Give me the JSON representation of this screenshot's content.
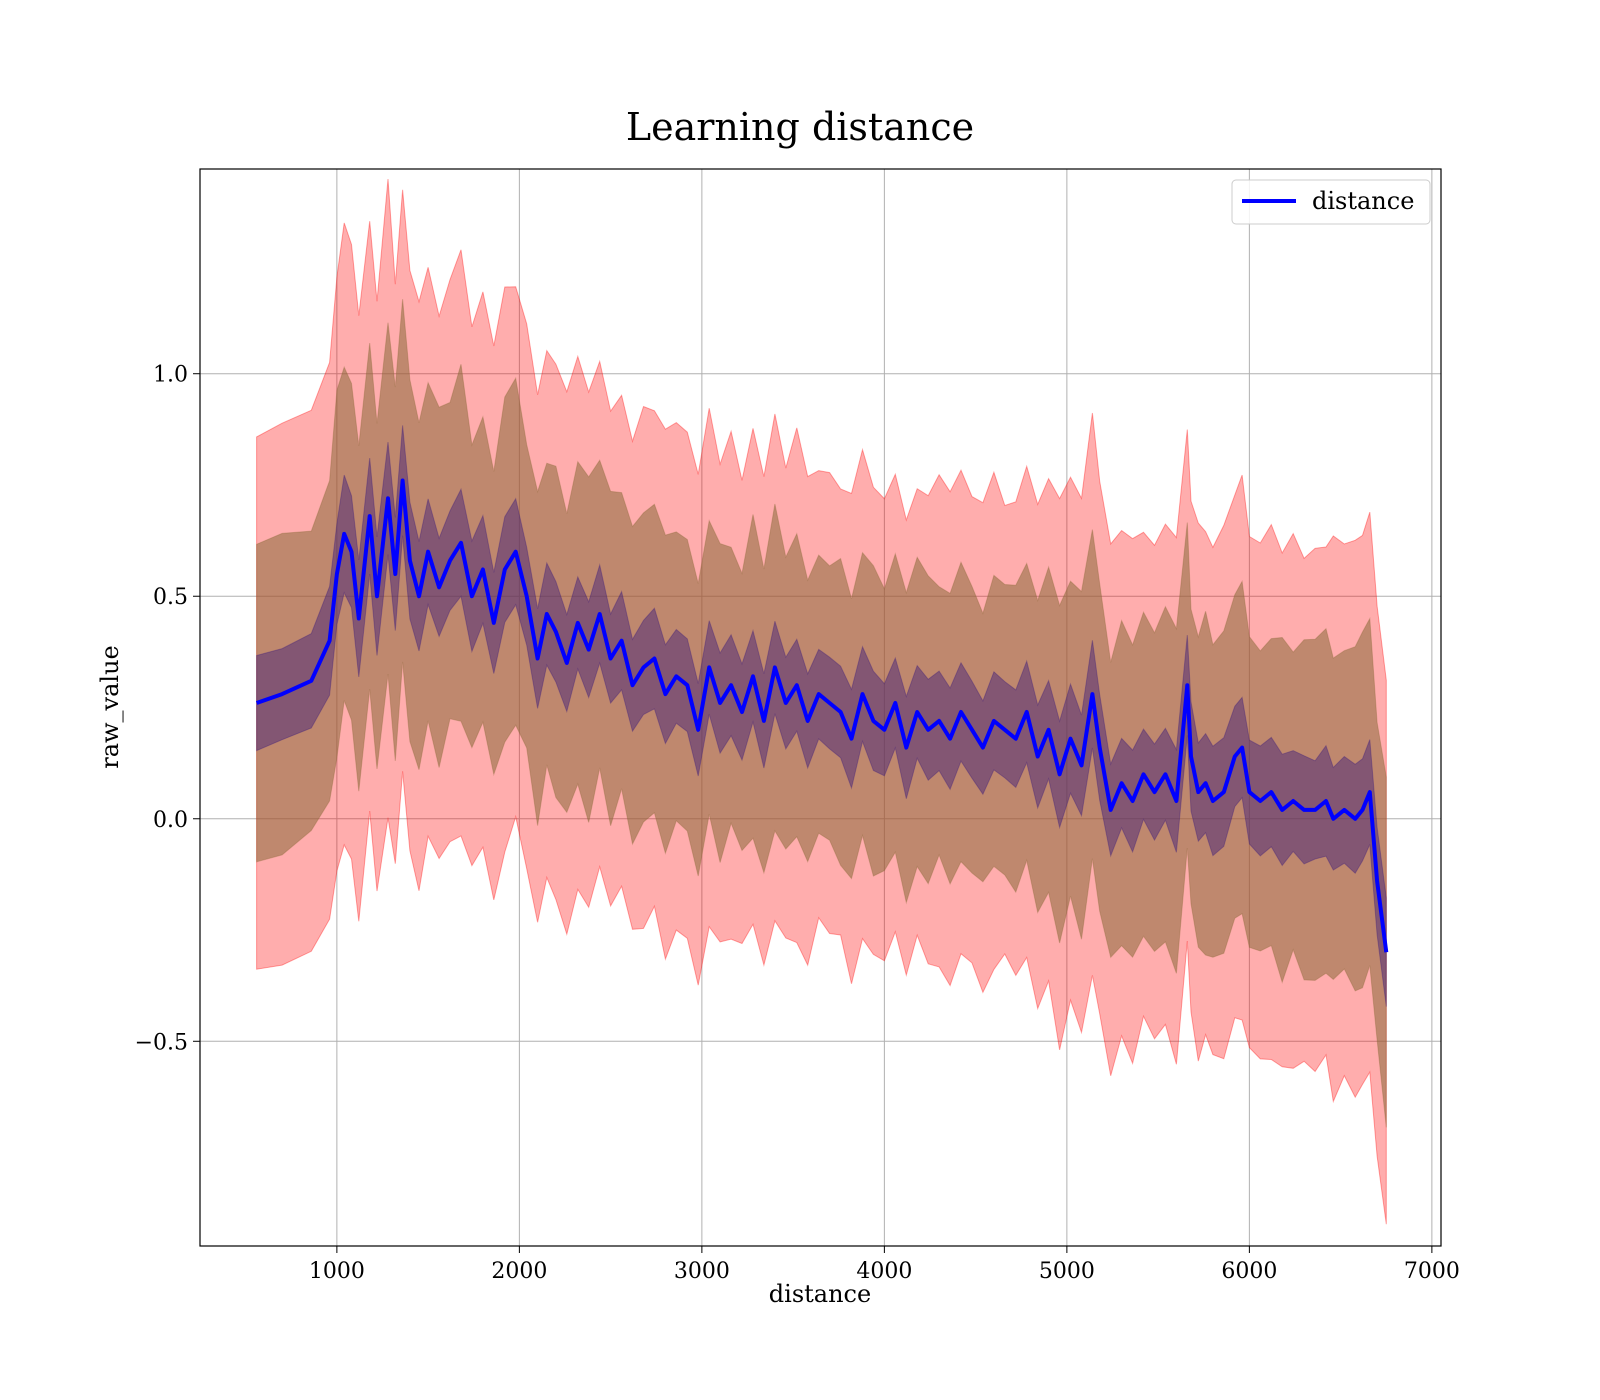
{
  "chart_data": {
    "type": "line",
    "title": "Learning distance",
    "xlabel": "distance",
    "ylabel": "raw_value",
    "xlim": [
      250,
      7050
    ],
    "ylim": [
      -0.96,
      1.46
    ],
    "xticks": [
      1000,
      2000,
      3000,
      4000,
      5000,
      6000,
      7000
    ],
    "xtick_labels": [
      "1000",
      "2000",
      "3000",
      "4000",
      "5000",
      "6000",
      "7000"
    ],
    "yticks": [
      -0.5,
      0.0,
      0.5,
      1.0
    ],
    "ytick_labels": [
      "−0.5",
      "0.0",
      "0.5",
      "1.0"
    ],
    "grid": true,
    "legend": {
      "position": "top-right",
      "entries": [
        "distance"
      ]
    },
    "series": [
      {
        "name": "distance",
        "color": "#0000ff",
        "x": [
          560,
          700,
          860,
          960,
          1000,
          1040,
          1080,
          1120,
          1180,
          1220,
          1280,
          1320,
          1360,
          1400,
          1450,
          1500,
          1560,
          1620,
          1680,
          1740,
          1800,
          1860,
          1920,
          1980,
          2040,
          2100,
          2150,
          2200,
          2260,
          2320,
          2380,
          2440,
          2500,
          2560,
          2620,
          2680,
          2740,
          2800,
          2860,
          2920,
          2980,
          3040,
          3100,
          3160,
          3220,
          3280,
          3340,
          3400,
          3460,
          3520,
          3580,
          3640,
          3700,
          3760,
          3820,
          3880,
          3940,
          4000,
          4060,
          4120,
          4180,
          4240,
          4300,
          4360,
          4420,
          4480,
          4540,
          4600,
          4660,
          4720,
          4780,
          4840,
          4900,
          4960,
          5020,
          5080,
          5140,
          5180,
          5240,
          5300,
          5360,
          5420,
          5480,
          5540,
          5600,
          5660,
          5680,
          5720,
          5760,
          5800,
          5860,
          5920,
          5960,
          6000,
          6060,
          6120,
          6180,
          6240,
          6300,
          6360,
          6420,
          6460,
          6520,
          6580,
          6620,
          6660,
          6700,
          6750
        ],
        "y": [
          0.26,
          0.28,
          0.31,
          0.4,
          0.55,
          0.64,
          0.6,
          0.45,
          0.68,
          0.5,
          0.72,
          0.55,
          0.76,
          0.58,
          0.5,
          0.6,
          0.52,
          0.58,
          0.62,
          0.5,
          0.56,
          0.44,
          0.56,
          0.6,
          0.5,
          0.36,
          0.46,
          0.42,
          0.35,
          0.44,
          0.38,
          0.46,
          0.36,
          0.4,
          0.3,
          0.34,
          0.36,
          0.28,
          0.32,
          0.3,
          0.2,
          0.34,
          0.26,
          0.3,
          0.24,
          0.32,
          0.22,
          0.34,
          0.26,
          0.3,
          0.22,
          0.28,
          0.26,
          0.24,
          0.18,
          0.28,
          0.22,
          0.2,
          0.26,
          0.16,
          0.24,
          0.2,
          0.22,
          0.18,
          0.24,
          0.2,
          0.16,
          0.22,
          0.2,
          0.18,
          0.24,
          0.14,
          0.2,
          0.1,
          0.18,
          0.12,
          0.28,
          0.16,
          0.02,
          0.08,
          0.04,
          0.1,
          0.06,
          0.1,
          0.04,
          0.3,
          0.14,
          0.06,
          0.08,
          0.04,
          0.06,
          0.14,
          0.16,
          0.06,
          0.04,
          0.06,
          0.02,
          0.04,
          0.02,
          0.02,
          0.04,
          0.0,
          0.02,
          0.0,
          0.02,
          0.06,
          -0.14,
          -0.3
        ]
      }
    ],
    "bands": [
      {
        "name": "",
        "color": "#ff0000",
        "opacity": 0.32,
        "halfwidth": [
          0.56,
          0.58,
          0.6,
          0.62,
          0.64,
          0.66,
          0.66,
          0.68,
          0.66,
          0.66,
          0.66,
          0.64,
          0.64,
          0.64,
          0.62,
          0.62,
          0.6,
          0.6,
          0.6,
          0.58,
          0.58,
          0.58,
          0.58,
          0.58,
          0.56,
          0.56,
          0.56,
          0.56,
          0.56,
          0.56,
          0.56,
          0.56,
          0.54,
          0.54,
          0.54,
          0.54,
          0.54,
          0.54,
          0.54,
          0.54,
          0.54,
          0.54,
          0.52,
          0.52,
          0.52,
          0.52,
          0.52,
          0.52,
          0.52,
          0.52,
          0.5,
          0.5,
          0.5,
          0.5,
          0.5,
          0.5,
          0.5,
          0.5,
          0.5,
          0.5,
          0.5,
          0.5,
          0.5,
          0.5,
          0.5,
          0.5,
          0.5,
          0.5,
          0.5,
          0.52,
          0.54,
          0.56,
          0.56,
          0.56,
          0.56,
          0.58,
          0.6,
          0.56,
          0.54,
          0.54,
          0.54,
          0.54,
          0.54,
          0.54,
          0.56,
          0.56,
          0.56,
          0.56,
          0.56,
          0.56,
          0.56,
          0.56,
          0.56,
          0.56,
          0.56,
          0.56,
          0.56,
          0.56,
          0.56,
          0.56,
          0.56,
          0.58,
          0.58,
          0.58,
          0.58,
          0.58,
          0.6,
          0.58
        ]
      },
      {
        "name": "",
        "color": "#8b6a3a",
        "opacity": 0.55,
        "halfwidth": [
          0.3,
          0.31,
          0.32,
          0.34,
          0.36,
          0.37,
          0.37,
          0.38,
          0.38,
          0.38,
          0.38,
          0.37,
          0.37,
          0.37,
          0.36,
          0.36,
          0.35,
          0.35,
          0.35,
          0.34,
          0.34,
          0.34,
          0.34,
          0.34,
          0.33,
          0.33,
          0.33,
          0.33,
          0.33,
          0.33,
          0.33,
          0.33,
          0.32,
          0.32,
          0.32,
          0.32,
          0.32,
          0.32,
          0.32,
          0.32,
          0.32,
          0.32,
          0.31,
          0.31,
          0.31,
          0.31,
          0.31,
          0.31,
          0.31,
          0.31,
          0.3,
          0.3,
          0.3,
          0.3,
          0.3,
          0.3,
          0.3,
          0.3,
          0.3,
          0.3,
          0.3,
          0.3,
          0.3,
          0.3,
          0.3,
          0.3,
          0.3,
          0.3,
          0.3,
          0.31,
          0.32,
          0.33,
          0.33,
          0.33,
          0.33,
          0.34,
          0.35,
          0.33,
          0.32,
          0.32,
          0.32,
          0.32,
          0.32,
          0.32,
          0.33,
          0.33,
          0.33,
          0.33,
          0.33,
          0.33,
          0.33,
          0.33,
          0.33,
          0.33,
          0.33,
          0.33,
          0.33,
          0.33,
          0.33,
          0.33,
          0.33,
          0.34,
          0.34,
          0.34,
          0.34,
          0.34,
          0.35,
          0.34
        ]
      },
      {
        "name": "",
        "color": "#3a1a7a",
        "opacity": 0.45,
        "halfwidth": [
          0.1,
          0.1,
          0.1,
          0.11,
          0.11,
          0.12,
          0.12,
          0.12,
          0.12,
          0.12,
          0.12,
          0.12,
          0.12,
          0.12,
          0.11,
          0.11,
          0.11,
          0.11,
          0.11,
          0.11,
          0.11,
          0.11,
          0.11,
          0.11,
          0.1,
          0.1,
          0.1,
          0.1,
          0.1,
          0.1,
          0.1,
          0.1,
          0.1,
          0.1,
          0.1,
          0.1,
          0.1,
          0.1,
          0.1,
          0.1,
          0.1,
          0.1,
          0.1,
          0.1,
          0.1,
          0.1,
          0.1,
          0.1,
          0.1,
          0.1,
          0.1,
          0.1,
          0.1,
          0.1,
          0.1,
          0.1,
          0.1,
          0.1,
          0.1,
          0.1,
          0.1,
          0.1,
          0.1,
          0.1,
          0.1,
          0.1,
          0.1,
          0.1,
          0.1,
          0.1,
          0.1,
          0.11,
          0.11,
          0.11,
          0.11,
          0.11,
          0.12,
          0.11,
          0.1,
          0.1,
          0.1,
          0.1,
          0.1,
          0.1,
          0.11,
          0.11,
          0.11,
          0.11,
          0.11,
          0.11,
          0.11,
          0.11,
          0.11,
          0.11,
          0.11,
          0.11,
          0.11,
          0.11,
          0.11,
          0.11,
          0.11,
          0.11,
          0.11,
          0.11,
          0.11,
          0.11,
          0.12,
          0.12
        ]
      }
    ]
  }
}
